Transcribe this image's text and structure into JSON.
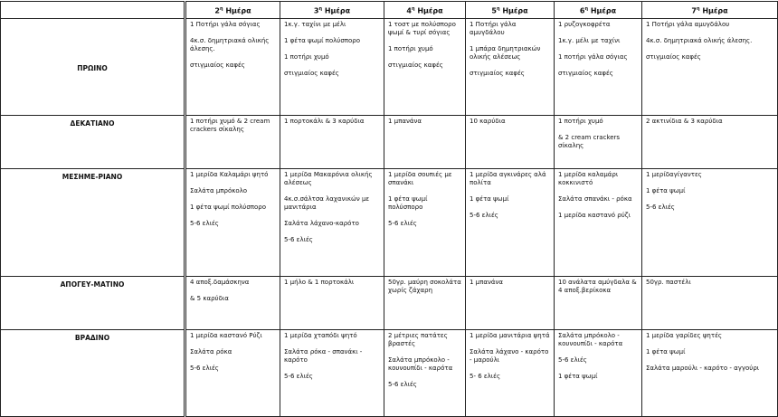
{
  "header": {
    "days": [
      {
        "num": "2",
        "sup": "η",
        "label": " Ημέρα"
      },
      {
        "num": "3",
        "sup": "η",
        "label": " Ημέρα"
      },
      {
        "num": "4",
        "sup": "η",
        "label": " Ημέρα"
      },
      {
        "num": "5",
        "sup": "η",
        "label": " Ημέρα"
      },
      {
        "num": "6",
        "sup": "η",
        "label": " Ημέρα"
      },
      {
        "num": "7",
        "sup": "η",
        "label": " Ημέρα"
      }
    ]
  },
  "rows": [
    {
      "label": "ΠΡΩΙΝΟ",
      "cells": [
        [
          "1 Ποτήρι γάλα σόγιας",
          "4κ.σ. δημητριακά ολικής άλεσης.",
          "στιγμιαίος καφές"
        ],
        [
          "1κ.γ. ταχίνι με μέλι",
          "1 φέτα ψωμί πολύσπορο",
          "1 ποτήρι χυμό",
          "στιγμιαίος καφές"
        ],
        [
          "1 τοστ με πολύσπορο ψωμί & τυρί σόγιας",
          "1 ποτήρι χυμό",
          "στιγμιαίος καφές"
        ],
        [
          "1 Ποτήρι γάλα αμυγδάλου",
          "1 μπάρα δημητριακών ολικής αλέσεως",
          "στιγμιαίος καφές"
        ],
        [
          "1 ρυζογκοφρέτα",
          "1κ.γ. μέλι με ταχίνι",
          "1 ποτήρι γάλα σόγιας",
          "στιγμιαίος καφές"
        ],
        [
          "1 Ποτήρι γάλα αμυγδάλου",
          "4κ.σ. δημητριακά ολικής άλεσης.",
          "στιγμιαίος καφές"
        ]
      ]
    },
    {
      "label": "ΔΕΚΑΤΙΑΝΟ",
      "cells": [
        [
          "1 ποτήρι χυμό & 2 cream crackers σίκαλης"
        ],
        [
          "1 πορτοκάλι & 3 καρύδια"
        ],
        [
          "1 μπανάνα"
        ],
        [
          "10 καρύδια"
        ],
        [
          "1 ποτήρι χυμό",
          "&  2 cream crackers σίκαλης"
        ],
        [
          "2 ακτινίδια & 3 καρύδια"
        ]
      ]
    },
    {
      "label": "ΜΕΣΗΜΕ-ΡΙΑΝΟ",
      "cells": [
        [
          "1 μερίδα Καλαμάρι ψητό",
          "Σαλάτα μπρόκολο",
          "1 φέτα ψωμί πολύσπορο",
          "5-6 ελιές"
        ],
        [
          "1 μερίδα Μακαρόνια ολικής αλέσεως",
          "4κ.σ.σάλτσα λαχανικών με μανιτάρια",
          "Σαλάτα λάχανο-καρότο",
          "5-6 ελιές"
        ],
        [
          "1 μερίδα σουπιές με σπανάκι",
          "1 φέτα ψωμί πολύσπορο",
          "5-6 ελιές"
        ],
        [
          "1 μερίδα αγκινάρες αλά πολίτα",
          "1 φέτα ψωμί",
          "5-6 ελιές"
        ],
        [
          "1 μερίδα καλαμάρι κοκκινιστό",
          "Σαλάτα σπανάκι - ρόκα",
          "1 μερίδα καστανό ρύζι"
        ],
        [
          "1 μερίδαγίγαντες",
          "1 φέτα ψωμί",
          "5-6 ελιές"
        ]
      ]
    },
    {
      "label": "ΑΠΟΓΕΥ-ΜΑΤΙΝΟ",
      "cells": [
        [
          "4 αποξ.δαμάσκηνα",
          "& 5 καρύδια"
        ],
        [
          "1 μήλο & 1 πορτοκάλι"
        ],
        [
          "50γρ. μαύρη σοκολάτα χωρίς ζάχαρη"
        ],
        [
          "1 μπανάνα"
        ],
        [
          "10 ανάλατα αμύγδαλα & 4 αποξ.βερίκοκα"
        ],
        [
          "50γρ. παστέλι"
        ]
      ]
    },
    {
      "label": "ΒΡΑΔΙΝΟ",
      "cells": [
        [
          "1 μερίδα καστανό Ρύζι",
          "Σαλάτα ρόκα",
          "5-6 ελιές"
        ],
        [
          "1 μερίδα χταπόδι ψητό",
          "Σαλάτα ρόκα - σπανάκι - καρότο",
          "5-6 ελιές"
        ],
        [
          "2 μέτριες πατάτες βραστές",
          "Σαλάτα μπρόκολο - κουνουπίδι - καρότα",
          "5-6 ελιές"
        ],
        [
          "1 μερίδα μανιτάρια ψητά",
          "Σαλάτα λάχανο - καρότο - μαρούλι",
          "5- 6 ελιές"
        ],
        [
          "Σαλάτα μπρόκολο - κουνουπίδι - καρότα",
          "5-6 ελιές",
          "1 φέτα ψωμί"
        ],
        [
          "1 μερίδα γαρίδες ψητές",
          "1 φέτα ψωμί",
          "Σαλάτα μαρούλι - καρότο - αγγούρι"
        ]
      ]
    }
  ]
}
